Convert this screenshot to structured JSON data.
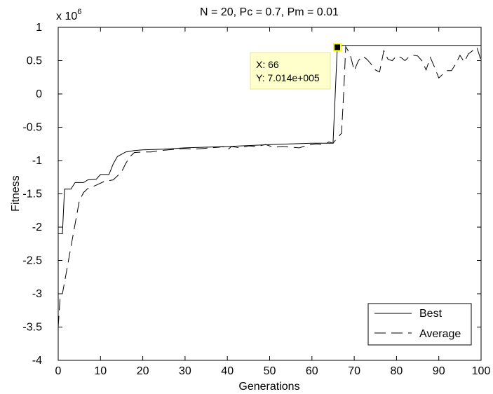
{
  "chart_data": {
    "type": "line",
    "title": "N = 20, Pc = 0.7, Pm = 0.01",
    "xlabel": "Generations",
    "ylabel": "Fitness",
    "y_exponent_label": "x 10",
    "y_exponent_power": "6",
    "xlim": [
      0,
      100
    ],
    "ylim": [
      -4,
      1
    ],
    "x_ticks": [
      0,
      10,
      20,
      30,
      40,
      50,
      60,
      70,
      80,
      90,
      100
    ],
    "y_ticks": [
      -4,
      -3.5,
      -3,
      -2.5,
      -2,
      -1.5,
      -1,
      -0.5,
      0,
      0.5,
      1
    ],
    "x_tick_labels": [
      "0",
      "10",
      "20",
      "30",
      "40",
      "50",
      "60",
      "70",
      "80",
      "90",
      "100"
    ],
    "y_tick_labels": [
      "-4",
      "-3.5",
      "-3",
      "-2.5",
      "-2",
      "-1.5",
      "-1",
      "-0.5",
      "0",
      "0.5",
      "1"
    ],
    "grid": false,
    "legend_position": "bottom-right",
    "series": [
      {
        "name": "Best",
        "style": "solid",
        "points": [
          [
            0,
            -2.1
          ],
          [
            1,
            -2.1
          ],
          [
            1.5,
            -1.43
          ],
          [
            3,
            -1.43
          ],
          [
            4,
            -1.33
          ],
          [
            6,
            -1.33
          ],
          [
            7,
            -1.29
          ],
          [
            9,
            -1.28
          ],
          [
            10,
            -1.21
          ],
          [
            12,
            -1.21
          ],
          [
            13,
            -1.05
          ],
          [
            14,
            -0.94
          ],
          [
            16,
            -0.87
          ],
          [
            18,
            -0.85
          ],
          [
            20,
            -0.84
          ],
          [
            25,
            -0.83
          ],
          [
            30,
            -0.81
          ],
          [
            40,
            -0.79
          ],
          [
            50,
            -0.76
          ],
          [
            60,
            -0.74
          ],
          [
            65,
            -0.74
          ],
          [
            66,
            0.7014
          ],
          [
            67,
            0.73
          ],
          [
            70,
            0.73
          ],
          [
            80,
            0.73
          ],
          [
            90,
            0.73
          ],
          [
            100,
            0.73
          ]
        ]
      },
      {
        "name": "Average",
        "style": "dashed",
        "points": [
          [
            0,
            -3.5
          ],
          [
            0.5,
            -3.0
          ],
          [
            1,
            -3.0
          ],
          [
            2,
            -2.65
          ],
          [
            3,
            -2.3
          ],
          [
            4,
            -1.95
          ],
          [
            5,
            -1.6
          ],
          [
            6,
            -1.48
          ],
          [
            7,
            -1.42
          ],
          [
            9,
            -1.37
          ],
          [
            11,
            -1.31
          ],
          [
            13,
            -1.29
          ],
          [
            15,
            -1.17
          ],
          [
            16,
            -1.04
          ],
          [
            17,
            -0.94
          ],
          [
            18,
            -0.88
          ],
          [
            20,
            -0.87
          ],
          [
            22,
            -0.87
          ],
          [
            24,
            -0.85
          ],
          [
            26,
            -0.84
          ],
          [
            28,
            -0.83
          ],
          [
            30,
            -0.82
          ],
          [
            32,
            -0.83
          ],
          [
            34,
            -0.82
          ],
          [
            36,
            -0.81
          ],
          [
            38,
            -0.8
          ],
          [
            39,
            -0.79
          ],
          [
            40,
            -0.84
          ],
          [
            41,
            -0.79
          ],
          [
            43,
            -0.81
          ],
          [
            45,
            -0.78
          ],
          [
            47,
            -0.79
          ],
          [
            49,
            -0.76
          ],
          [
            51,
            -0.8
          ],
          [
            53,
            -0.79
          ],
          [
            55,
            -0.8
          ],
          [
            57,
            -0.81
          ],
          [
            59,
            -0.77
          ],
          [
            61,
            -0.75
          ],
          [
            63,
            -0.76
          ],
          [
            64,
            -0.72
          ],
          [
            65,
            -0.74
          ],
          [
            66,
            -0.66
          ],
          [
            67,
            -0.59
          ],
          [
            67.5,
            0.0
          ],
          [
            68,
            0.71
          ],
          [
            69,
            0.6
          ],
          [
            70,
            0.35
          ],
          [
            71,
            0.5
          ],
          [
            72,
            0.57
          ],
          [
            73,
            0.52
          ],
          [
            74,
            0.45
          ],
          [
            75,
            0.36
          ],
          [
            76,
            0.33
          ],
          [
            77,
            0.65
          ],
          [
            78,
            0.52
          ],
          [
            79,
            0.5
          ],
          [
            80,
            0.57
          ],
          [
            81,
            0.55
          ],
          [
            82,
            0.5
          ],
          [
            83,
            0.56
          ],
          [
            84,
            0.58
          ],
          [
            85,
            0.57
          ],
          [
            86,
            0.5
          ],
          [
            87,
            0.36
          ],
          [
            88,
            0.55
          ],
          [
            89,
            0.4
          ],
          [
            90,
            0.24
          ],
          [
            91,
            0.3
          ],
          [
            92,
            0.35
          ],
          [
            93,
            0.35
          ],
          [
            94,
            0.45
          ],
          [
            95,
            0.58
          ],
          [
            96,
            0.48
          ],
          [
            97,
            0.6
          ],
          [
            98,
            0.65
          ],
          [
            99,
            0.7
          ],
          [
            100,
            0.5
          ]
        ]
      }
    ],
    "datatip": {
      "x": 66,
      "y": 701400,
      "x_text": "X: 66",
      "y_text": "Y: 7.014e+005"
    }
  }
}
